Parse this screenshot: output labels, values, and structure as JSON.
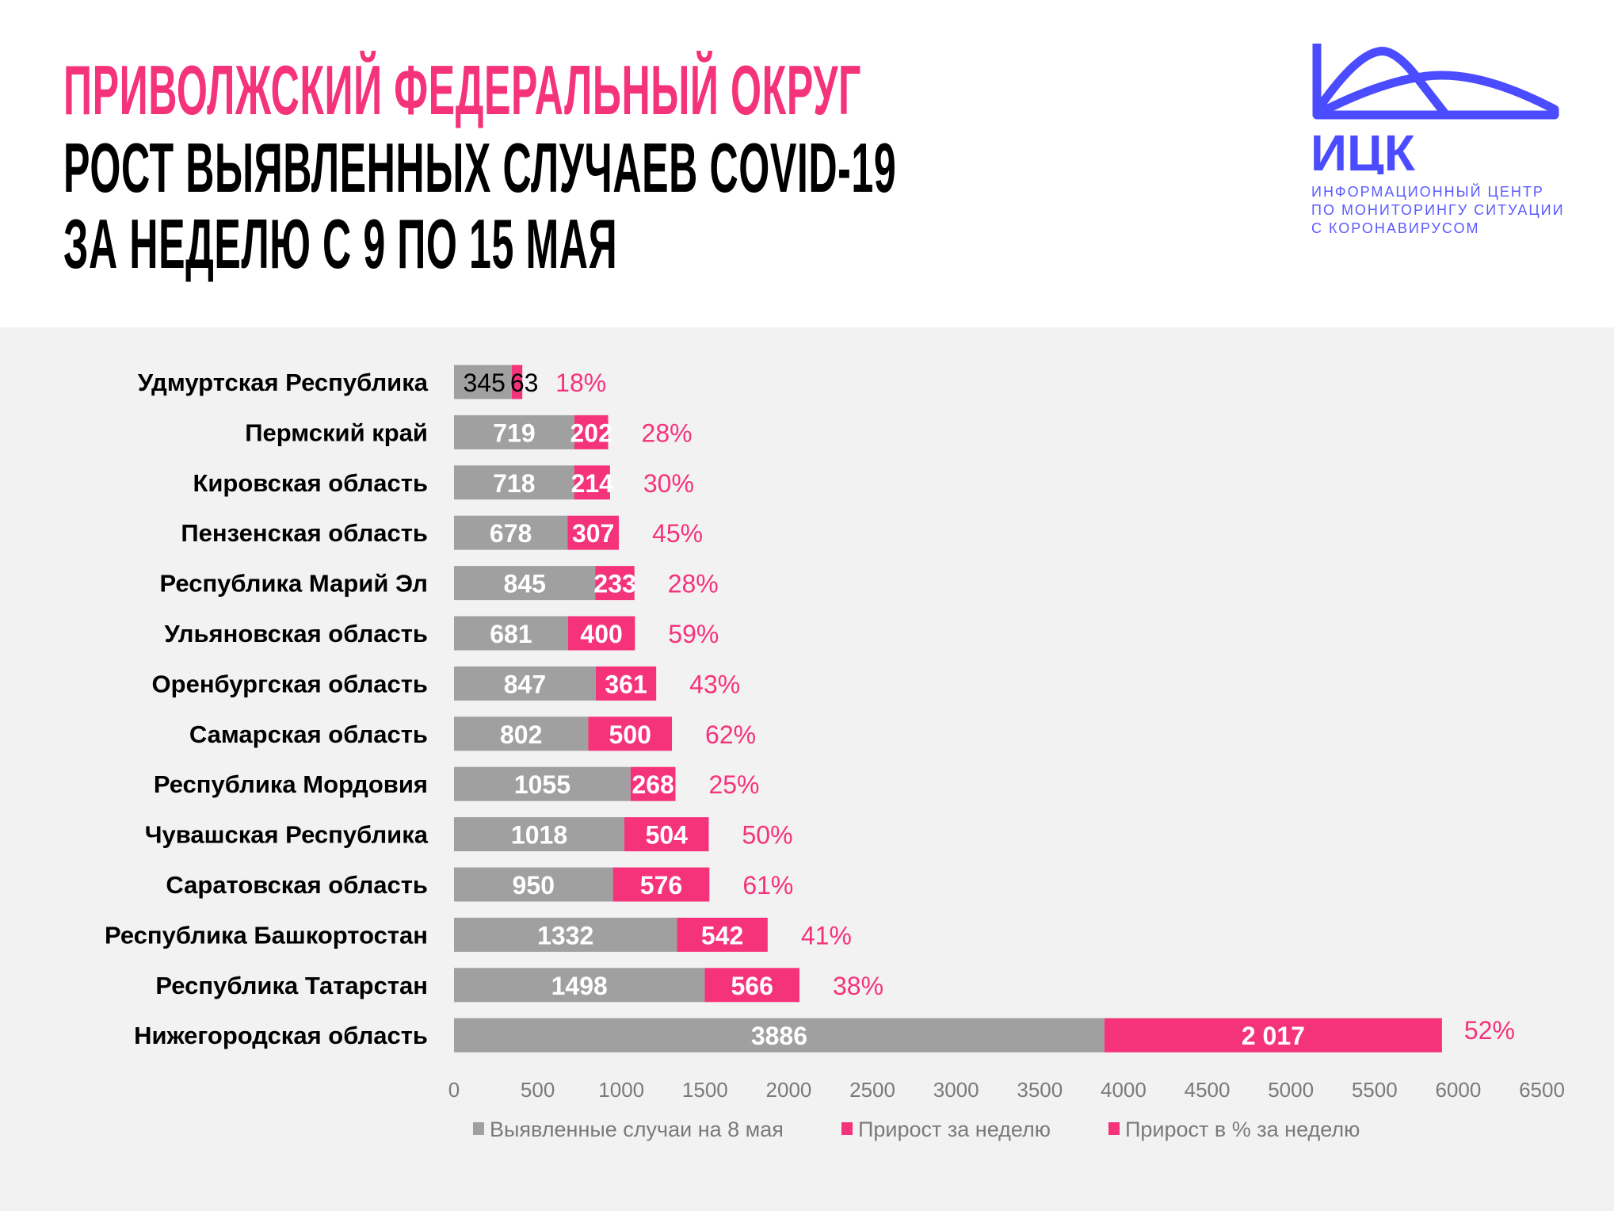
{
  "header": {
    "title_line1": "ПРИВОЛЖСКИЙ ФЕДЕРАЛЬНЫЙ ОКРУГ",
    "title_line2": "РОСТ ВЫЯВЛЕННЫХ СЛУЧАЕВ COVID-19",
    "title_line3": "ЗА НЕДЕЛЮ С 9 ПО 15 МАЯ"
  },
  "logo": {
    "abbr": "ИЦК",
    "line1": "ИНФОРМАЦИОННЫЙ ЦЕНТР",
    "line2": "ПО МОНИТОРИНГУ СИТУАЦИИ",
    "line3": "С КОРОНАВИРУСОМ",
    "color": "#4b4bff"
  },
  "chart_data": {
    "type": "bar",
    "orientation": "horizontal",
    "stacked": true,
    "categories": [
      "Удмуртская Республика",
      "Пермский край",
      "Кировская область",
      "Пензенская область",
      "Республика Марий Эл",
      "Ульяновская область",
      "Оренбургская область",
      "Самарская область",
      "Республика Мордовия",
      "Чувашская Республика",
      "Саратовская область",
      "Республика Башкортостан",
      "Республика Татарстан",
      "Нижегородская область"
    ],
    "series": [
      {
        "name": "Выявленные случаи на 8 мая",
        "color": "#a0a0a0",
        "values": [
          345,
          719,
          718,
          678,
          845,
          681,
          847,
          802,
          1055,
          1018,
          950,
          1332,
          1498,
          3886
        ],
        "labels": [
          "345",
          "719",
          "718",
          "678",
          "845",
          "681",
          "847",
          "802",
          "1055",
          "1018",
          "950",
          "1332",
          "1498",
          "3886"
        ]
      },
      {
        "name": "Прирост за неделю",
        "color": "#f5337a",
        "values": [
          63,
          202,
          214,
          307,
          233,
          400,
          361,
          500,
          268,
          504,
          576,
          542,
          566,
          2017
        ],
        "labels": [
          "63",
          "202",
          "214",
          "307",
          "233",
          "400",
          "361",
          "500",
          "268",
          "504",
          "576",
          "542",
          "566",
          "2 017"
        ]
      },
      {
        "name": "Прирост в % за неделю",
        "color": "#f5337a",
        "values": [
          18,
          28,
          30,
          45,
          28,
          59,
          43,
          62,
          25,
          50,
          61,
          41,
          38,
          52
        ],
        "labels": [
          "18%",
          "28%",
          "30%",
          "45%",
          "28%",
          "59%",
          "43%",
          "62%",
          "25%",
          "50%",
          "61%",
          "41%",
          "38%",
          "52%"
        ]
      }
    ],
    "xlim": [
      0,
      6500
    ],
    "xticks": [
      "0",
      "500",
      "1000",
      "1500",
      "2000",
      "2500",
      "3000",
      "3500",
      "4000",
      "4500",
      "5000",
      "5500",
      "6000",
      "6500"
    ],
    "grid": false,
    "legend_placement": "bottom"
  }
}
